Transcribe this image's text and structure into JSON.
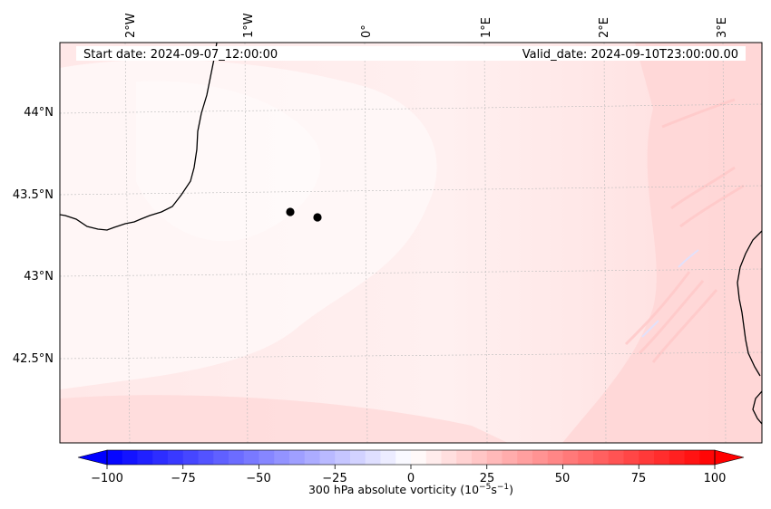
{
  "annotations": {
    "start_date": "Start date: 2024-09-07_12:00:00",
    "valid_date": "Valid_date: 2024-09-10T23:00:00.00"
  },
  "longitude_labels": [
    "2°W",
    "1°W",
    "0°",
    "1°E",
    "2°E",
    "3°E"
  ],
  "latitude_labels": [
    "44°N",
    "43.5°N",
    "43°N",
    "42.5°N"
  ],
  "colorbar": {
    "ticks": [
      "−100",
      "−75",
      "−50",
      "−25",
      "0",
      "25",
      "50",
      "75",
      "100"
    ],
    "label_main": "300 hPa absolute vorticity (10",
    "label_exp1": "−5",
    "label_mid": "s",
    "label_exp2": "−1",
    "label_end": ")",
    "range": [
      -100,
      100
    ],
    "low_color": "#0000ff",
    "mid_color": "#ffffff",
    "high_color": "#ff0000"
  },
  "markers": [
    {
      "name": "point-1",
      "color": "#000000"
    },
    {
      "name": "point-2",
      "color": "#000000"
    }
  ],
  "colors": {
    "coastline": "#000000",
    "gridline": "#bbbbbb",
    "field_base": "#ffe6e6"
  }
}
